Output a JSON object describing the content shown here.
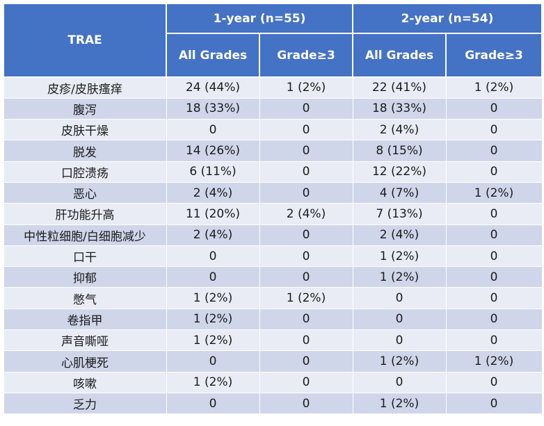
{
  "header": {
    "trae": "TRAE",
    "group1": "1-year (n=55)",
    "group2": "2-year (n=54)",
    "all_grades": "All Grades",
    "grade3": "Grade≥3"
  },
  "rows": [
    {
      "name": "皮疹/皮肤瘙痒",
      "y1_all": "24 (44%)",
      "y1_g3": "1 (2%)",
      "y2_all": "22 (41%)",
      "y2_g3": "1 (2%)"
    },
    {
      "name": "腹泻",
      "y1_all": "18 (33%)",
      "y1_g3": "0",
      "y2_all": "18 (33%)",
      "y2_g3": "0"
    },
    {
      "name": "皮肤干燥",
      "y1_all": "0",
      "y1_g3": "0",
      "y2_all": "2 (4%)",
      "y2_g3": "0"
    },
    {
      "name": "脱发",
      "y1_all": "14 (26%)",
      "y1_g3": "0",
      "y2_all": "8 (15%)",
      "y2_g3": "0"
    },
    {
      "name": "口腔溃疡",
      "y1_all": "6 (11%)",
      "y1_g3": "0",
      "y2_all": "12 (22%)",
      "y2_g3": "0"
    },
    {
      "name": "恶心",
      "y1_all": "2 (4%)",
      "y1_g3": "0",
      "y2_all": "4 (7%)",
      "y2_g3": "1 (2%)"
    },
    {
      "name": "肝功能升高",
      "y1_all": "11 (20%)",
      "y1_g3": "2 (4%)",
      "y2_all": "7 (13%)",
      "y2_g3": "0"
    },
    {
      "name": "中性粒细胞/白细胞减少",
      "y1_all": "2 (4%)",
      "y1_g3": "0",
      "y2_all": "2 (4%)",
      "y2_g3": "0"
    },
    {
      "name": "口干",
      "y1_all": "0",
      "y1_g3": "0",
      "y2_all": "1 (2%)",
      "y2_g3": "0"
    },
    {
      "name": "抑郁",
      "y1_all": "0",
      "y1_g3": "0",
      "y2_all": "1 (2%)",
      "y2_g3": "0"
    },
    {
      "name": "憋气",
      "y1_all": "1 (2%)",
      "y1_g3": "1 (2%)",
      "y2_all": "0",
      "y2_g3": "0"
    },
    {
      "name": "卷指甲",
      "y1_all": "1 (2%)",
      "y1_g3": "0",
      "y2_all": "0",
      "y2_g3": "0"
    },
    {
      "name": "声音嘶哑",
      "y1_all": "1 (2%)",
      "y1_g3": "0",
      "y2_all": "0",
      "y2_g3": "0"
    },
    {
      "name": "心肌梗死",
      "y1_all": "0",
      "y1_g3": "0",
      "y2_all": "1 (2%)",
      "y2_g3": "1 (2%)"
    },
    {
      "name": "咳嗽",
      "y1_all": "1 (2%)",
      "y1_g3": "0",
      "y2_all": "0",
      "y2_g3": "0"
    },
    {
      "name": "乏力",
      "y1_all": "0",
      "y1_g3": "0",
      "y2_all": "1 (2%)",
      "y2_g3": "0"
    }
  ]
}
